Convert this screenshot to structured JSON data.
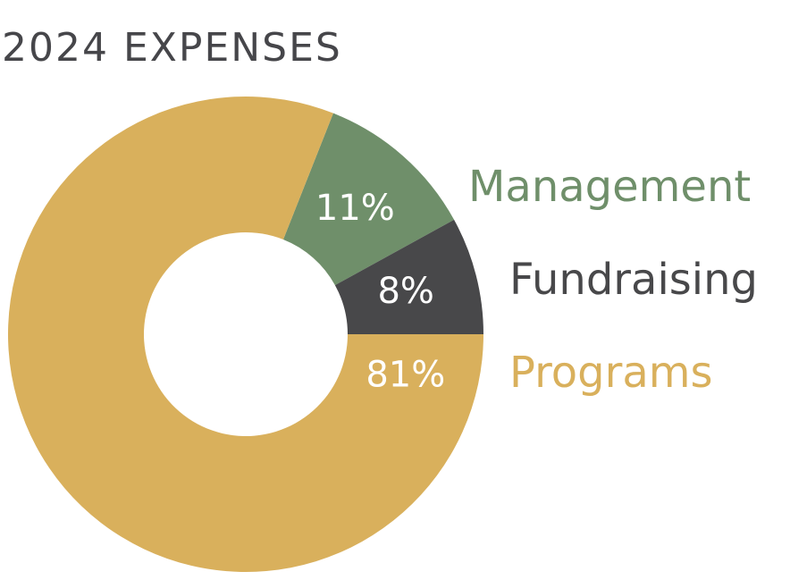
{
  "chart_data": {
    "type": "pie",
    "title": "2024 EXPENSES",
    "categories": [
      "Management",
      "Fundraising",
      "Programs"
    ],
    "values": [
      11,
      8,
      81
    ],
    "value_labels": [
      "11%",
      "8%",
      "81%"
    ],
    "colors": [
      "#6f8f6a",
      "#48484a",
      "#d9b05c"
    ]
  }
}
